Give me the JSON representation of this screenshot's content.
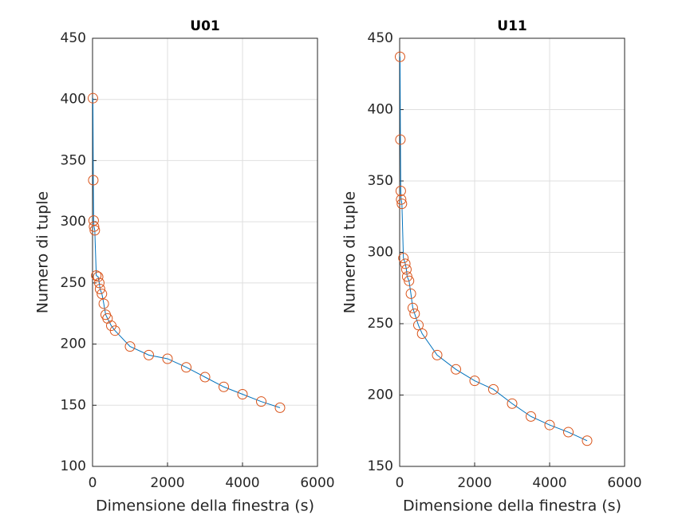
{
  "chart_data": [
    {
      "type": "line",
      "title": "U01",
      "x_label": "Dimensione della finestra (s)",
      "y_label": "Numero di tuple",
      "x": [
        10,
        20,
        30,
        40,
        60,
        100,
        150,
        180,
        200,
        250,
        300,
        350,
        400,
        500,
        600,
        1000,
        1500,
        2000,
        2500,
        3000,
        3500,
        4000,
        4500,
        5000
      ],
      "values": [
        401,
        334,
        301,
        296,
        293,
        256,
        255,
        250,
        245,
        241,
        233,
        224,
        221,
        215,
        211,
        198,
        191,
        188,
        181,
        173,
        165,
        159,
        153,
        148
      ],
      "line_color": "#0072bd",
      "marker_color": "#d95319",
      "marker": "o",
      "xlim": [
        0,
        6000
      ],
      "xticks": [
        0,
        2000,
        4000,
        6000
      ],
      "ylim": [
        100,
        450
      ],
      "yticks": [
        100,
        150,
        200,
        250,
        300,
        350,
        400,
        450
      ],
      "grid": true
    },
    {
      "type": "line",
      "title": "U11",
      "x_label": "Dimensione della finestra (s)",
      "y_label": "Numero di tuple",
      "x": [
        10,
        20,
        30,
        40,
        60,
        100,
        150,
        180,
        200,
        250,
        300,
        350,
        400,
        500,
        600,
        1000,
        1500,
        2000,
        2500,
        3000,
        3500,
        4000,
        4500,
        5000
      ],
      "values": [
        437,
        379,
        343,
        337,
        334,
        296,
        292,
        288,
        283,
        280,
        271,
        261,
        257,
        249,
        243,
        228,
        218,
        210,
        204,
        194,
        185,
        179,
        174,
        168
      ],
      "line_color": "#0072bd",
      "marker_color": "#d95319",
      "marker": "o",
      "xlim": [
        0,
        6000
      ],
      "xticks": [
        0,
        2000,
        4000,
        6000
      ],
      "ylim": [
        150,
        450
      ],
      "yticks": [
        150,
        200,
        250,
        300,
        350,
        400,
        450
      ],
      "grid": true
    }
  ]
}
